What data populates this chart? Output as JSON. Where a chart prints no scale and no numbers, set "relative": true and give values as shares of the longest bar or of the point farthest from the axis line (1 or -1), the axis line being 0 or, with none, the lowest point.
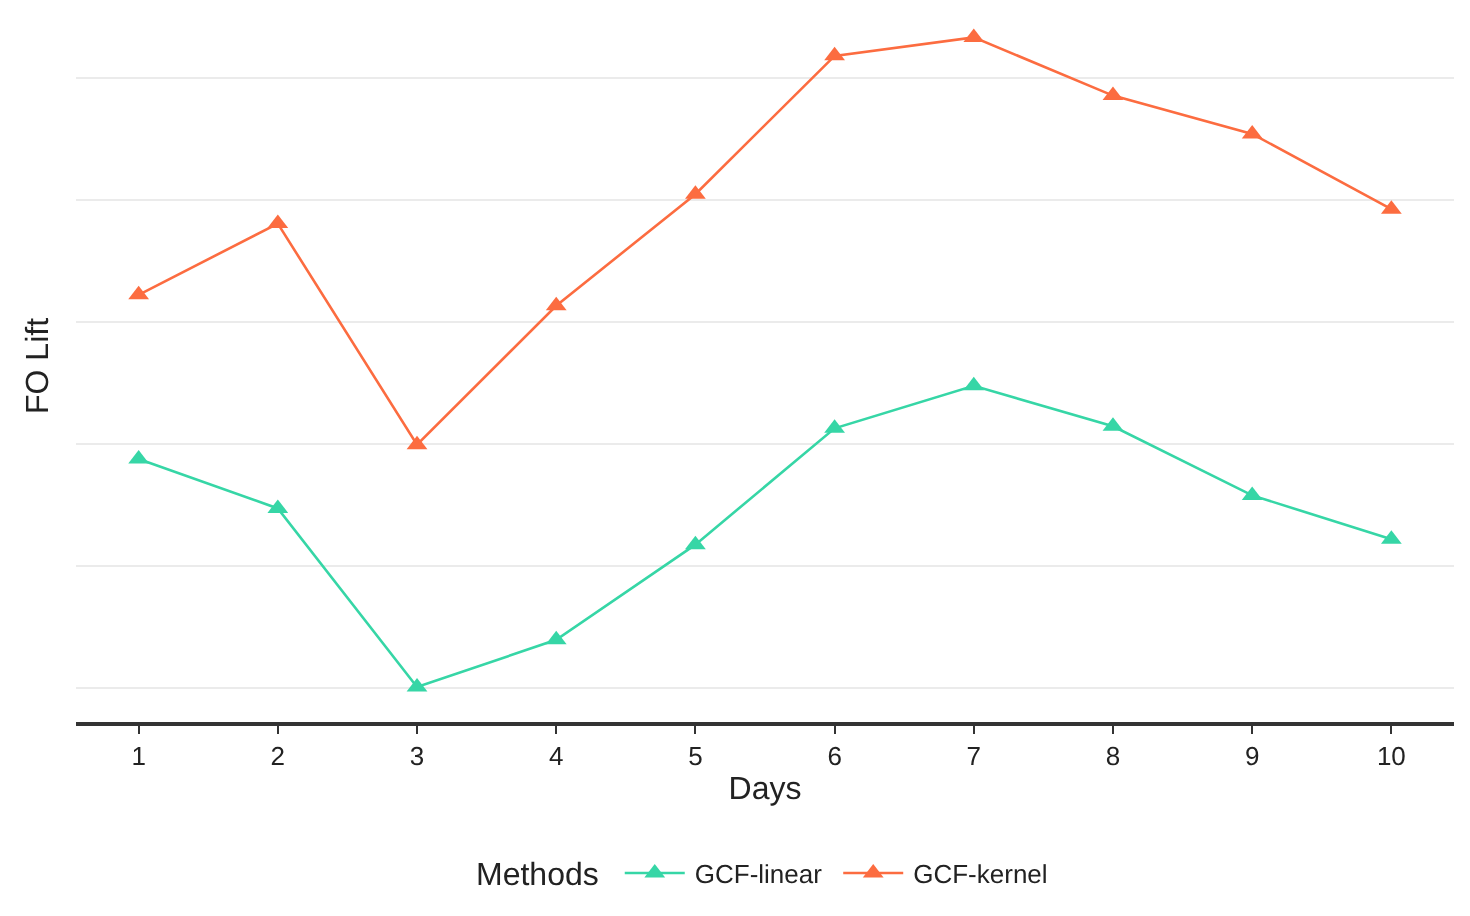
{
  "chart_data": {
    "type": "line",
    "xlabel": "Days",
    "ylabel": "FO Lift",
    "legend_title": "Methods",
    "legend": "bottom",
    "relative": true,
    "grid": "y",
    "marker": "triangle",
    "line_style": "solid",
    "categories": [
      "1",
      "2",
      "3",
      "4",
      "5",
      "6",
      "7",
      "8",
      "9",
      "10"
    ],
    "series": [
      {
        "name": "GCF-linear",
        "color": "#36d6a6",
        "values": [
          0.384,
          0.312,
          0.051,
          0.12,
          0.259,
          0.429,
          0.491,
          0.432,
          0.331,
          0.267
        ]
      },
      {
        "name": "GCF-kernel",
        "color": "#fc6c40",
        "values": [
          0.624,
          0.728,
          0.405,
          0.608,
          0.771,
          0.973,
          1,
          0.915,
          0.859,
          0.749
        ]
      }
    ]
  }
}
